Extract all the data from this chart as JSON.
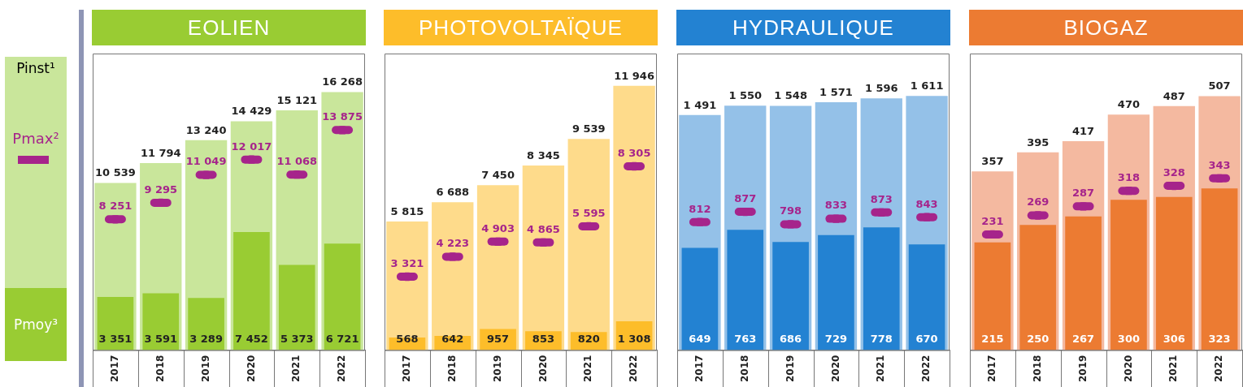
{
  "chart_data": [
    {
      "type": "bar",
      "title": "EOLIEN",
      "categories": [
        "2017",
        "2018",
        "2019",
        "2020",
        "2021",
        "2022"
      ],
      "ylim": [
        0,
        18700
      ],
      "tick_labels": "x",
      "data_labels": true,
      "legend": "left",
      "series": [
        {
          "name": "Pinst¹",
          "color": "#c9e69b",
          "values": [
            10539,
            11794,
            13240,
            14429,
            15121,
            16268
          ]
        },
        {
          "name": "Pmax²",
          "type": "scatter",
          "color": "#a6248b",
          "values": [
            8251,
            9295,
            11049,
            12017,
            11068,
            13875
          ]
        },
        {
          "name": "Pmoy³",
          "color": "#99cc33",
          "values": [
            3351,
            3591,
            3289,
            7452,
            5373,
            6721
          ]
        }
      ]
    },
    {
      "type": "bar",
      "title": "PHOTOVOLTAÏQUE",
      "categories": [
        "2017",
        "2018",
        "2019",
        "2020",
        "2021",
        "2022"
      ],
      "ylim": [
        0,
        13400
      ],
      "tick_labels": "x",
      "data_labels": true,
      "series": [
        {
          "color": "#fedb8b",
          "values": [
            5815,
            6688,
            7450,
            8345,
            9539,
            11946
          ]
        },
        {
          "type": "scatter",
          "color": "#a6248b",
          "values": [
            3321,
            4223,
            4903,
            4865,
            5595,
            8305
          ]
        },
        {
          "color": "#fdbd2a",
          "values": [
            568,
            642,
            957,
            853,
            820,
            1308
          ]
        }
      ]
    },
    {
      "type": "bar",
      "title": "HYDRAULIQUE",
      "categories": [
        "2017",
        "2018",
        "2019",
        "2020",
        "2021",
        "2022"
      ],
      "ylim": [
        0,
        1880
      ],
      "tick_labels": "x",
      "data_labels": true,
      "series": [
        {
          "color": "#94c1e8",
          "values": [
            1491,
            1550,
            1548,
            1571,
            1596,
            1611
          ]
        },
        {
          "type": "scatter",
          "color": "#a6248b",
          "values": [
            812,
            877,
            798,
            833,
            873,
            843
          ]
        },
        {
          "color": "#2382d2",
          "values": [
            649,
            763,
            686,
            729,
            778,
            670
          ]
        }
      ]
    },
    {
      "type": "bar",
      "title": "BIOGAZ",
      "categories": [
        "2017",
        "2018",
        "2019",
        "2020",
        "2021",
        "2022"
      ],
      "ylim": [
        0,
        592
      ],
      "tick_labels": "x",
      "data_labels": true,
      "series": [
        {
          "color": "#f4b9a0",
          "values": [
            357,
            395,
            417,
            470,
            487,
            507
          ]
        },
        {
          "type": "scatter",
          "color": "#a6248b",
          "values": [
            231,
            269,
            287,
            318,
            328,
            343
          ]
        },
        {
          "color": "#ec7b32",
          "values": [
            215,
            250,
            267,
            300,
            306,
            323
          ]
        }
      ]
    }
  ]
}
